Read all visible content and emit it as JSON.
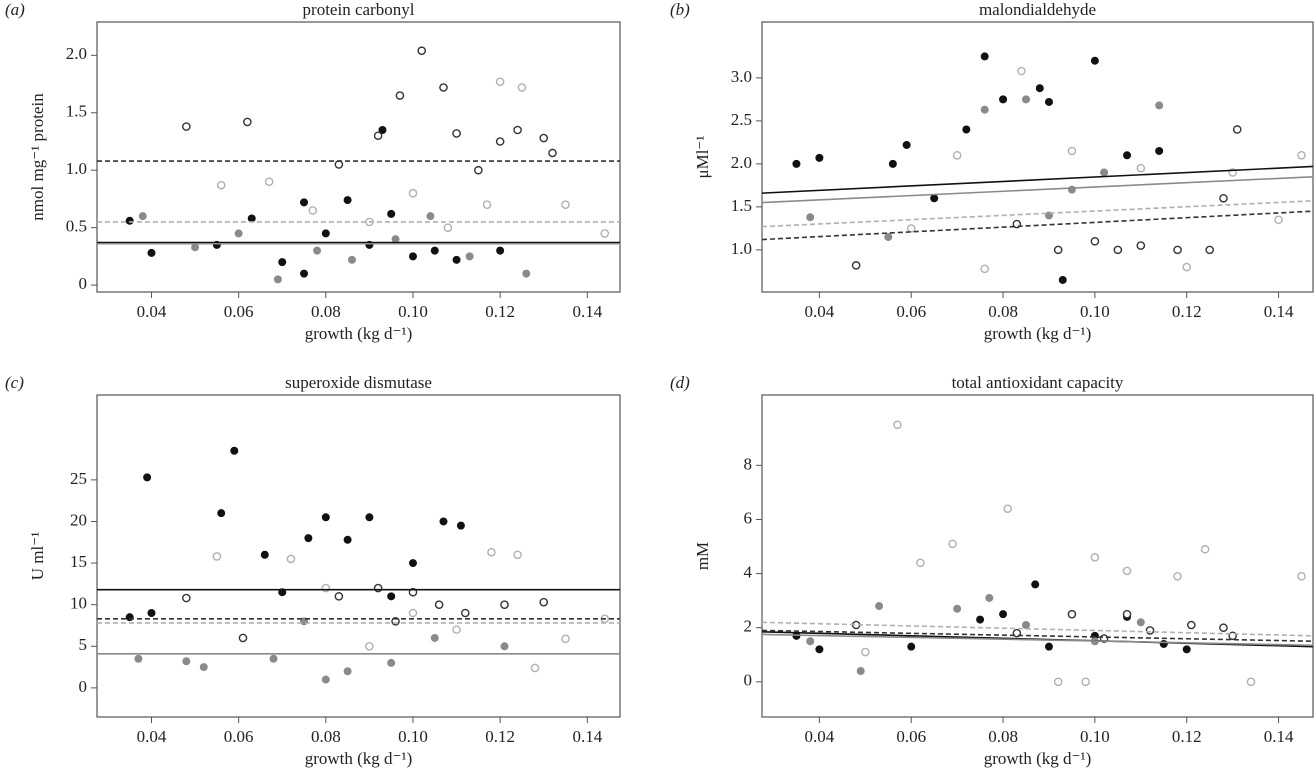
{
  "chart_data": [
    {
      "type": "scatter",
      "panel": "(a)",
      "title": "protein carbonyl",
      "x_label": "growth (kg d⁻¹)",
      "y_label": "nmol mg⁻¹ protein",
      "xlim": [
        0.0275,
        0.1475
      ],
      "xticks": [
        0.04,
        0.06,
        0.08,
        {
          "value": 0.1,
          "label": "0.10"
        },
        0.12,
        0.14
      ],
      "ylim": [
        -0.06,
        2.29
      ],
      "yticks": [
        0,
        0.5,
        {
          "value": 1,
          "label": "1.0"
        },
        1.5,
        {
          "value": 2,
          "label": "2.0"
        }
      ],
      "series": [
        {
          "color": "#111111",
          "marker": "filled",
          "dash": false,
          "x": [
            0.035,
            0.04,
            0.055,
            0.063,
            0.07,
            0.075,
            0.08,
            0.085,
            0.09,
            0.095,
            0.1,
            0.105,
            0.11,
            0.12,
            0.075,
            0.093
          ],
          "values": [
            0.56,
            0.28,
            0.35,
            0.58,
            0.2,
            0.1,
            0.45,
            0.74,
            0.35,
            0.62,
            0.25,
            0.3,
            0.22,
            0.3,
            0.72,
            1.35
          ],
          "trend": [
            0.37,
            0.37
          ]
        },
        {
          "color": "#8a8a8a",
          "marker": "filled",
          "dash": false,
          "x": [
            0.038,
            0.05,
            0.06,
            0.069,
            0.078,
            0.086,
            0.096,
            0.104,
            0.113,
            0.126
          ],
          "values": [
            0.6,
            0.33,
            0.45,
            0.05,
            0.3,
            0.22,
            0.4,
            0.6,
            0.25,
            0.1
          ],
          "trend": [
            0.36,
            0.36
          ]
        },
        {
          "color": "#333333",
          "marker": "open",
          "dash": true,
          "x": [
            0.048,
            0.062,
            0.083,
            0.092,
            0.097,
            0.102,
            0.107,
            0.11,
            0.115,
            0.12,
            0.124,
            0.13,
            0.132
          ],
          "values": [
            1.38,
            1.42,
            1.05,
            1.3,
            1.65,
            2.04,
            1.72,
            1.32,
            1.0,
            1.25,
            1.35,
            1.28,
            1.15
          ],
          "trend": [
            1.08,
            1.08
          ]
        },
        {
          "color": "#b0b0b0",
          "marker": "open",
          "dash": true,
          "x": [
            0.056,
            0.067,
            0.077,
            0.09,
            0.1,
            0.108,
            0.117,
            0.12,
            0.125,
            0.135,
            0.144
          ],
          "values": [
            0.87,
            0.9,
            0.65,
            0.55,
            0.8,
            0.5,
            0.7,
            1.77,
            1.72,
            0.7,
            0.45
          ],
          "trend": [
            0.55,
            0.55
          ]
        }
      ]
    },
    {
      "type": "scatter",
      "panel": "(b)",
      "title": "malondialdehyde",
      "x_label": "growth (kg d⁻¹)",
      "y_label": "μMl⁻¹",
      "xlim": [
        0.0275,
        0.1475
      ],
      "xticks": [
        0.04,
        0.06,
        0.08,
        {
          "value": 0.1,
          "label": "0.10"
        },
        0.12,
        0.14
      ],
      "ylim": [
        0.51,
        3.65
      ],
      "yticks": [
        {
          "value": 1,
          "label": "1.0"
        },
        1.5,
        {
          "value": 2,
          "label": "2.0"
        },
        2.5,
        {
          "value": 3,
          "label": "3.0"
        }
      ],
      "series": [
        {
          "color": "#111111",
          "marker": "filled",
          "dash": false,
          "x": [
            0.035,
            0.04,
            0.056,
            0.059,
            0.072,
            0.076,
            0.08,
            0.088,
            0.09,
            0.1,
            0.107,
            0.114,
            0.093,
            0.065
          ],
          "values": [
            2.0,
            2.07,
            2.0,
            2.22,
            2.4,
            3.25,
            2.75,
            2.88,
            2.72,
            3.2,
            2.1,
            2.15,
            0.65,
            1.6
          ],
          "trend": [
            1.66,
            1.97
          ]
        },
        {
          "color": "#8a8a8a",
          "marker": "filled",
          "dash": false,
          "x": [
            0.038,
            0.055,
            0.076,
            0.085,
            0.095,
            0.102,
            0.114,
            0.09
          ],
          "values": [
            1.38,
            1.15,
            2.63,
            2.75,
            1.7,
            1.9,
            2.68,
            1.4
          ],
          "trend": [
            1.55,
            1.85
          ]
        },
        {
          "color": "#333333",
          "marker": "open",
          "dash": true,
          "x": [
            0.048,
            0.083,
            0.092,
            0.1,
            0.105,
            0.11,
            0.118,
            0.125,
            0.131,
            0.128
          ],
          "values": [
            0.82,
            1.3,
            1.0,
            1.1,
            1.0,
            1.05,
            1.0,
            1.0,
            2.4,
            1.6
          ],
          "trend": [
            1.12,
            1.45
          ]
        },
        {
          "color": "#b0b0b0",
          "marker": "open",
          "dash": true,
          "x": [
            0.06,
            0.07,
            0.076,
            0.084,
            0.095,
            0.11,
            0.12,
            0.13,
            0.14,
            0.145
          ],
          "values": [
            1.25,
            2.1,
            0.78,
            3.08,
            2.15,
            1.95,
            0.8,
            1.9,
            1.35,
            2.1
          ],
          "trend": [
            1.27,
            1.57
          ]
        }
      ]
    },
    {
      "type": "scatter",
      "panel": "(c)",
      "title": "superoxide dismutase",
      "x_label": "growth (kg d⁻¹)",
      "y_label": "U ml⁻¹",
      "xlim": [
        0.0275,
        0.1475
      ],
      "xticks": [
        0.04,
        0.06,
        0.08,
        {
          "value": 0.1,
          "label": "0.10"
        },
        0.12,
        0.14
      ],
      "ylim": [
        -3.5,
        35.2
      ],
      "yticks": [
        0,
        5,
        10,
        15,
        20,
        25
      ],
      "series": [
        {
          "color": "#111111",
          "marker": "filled",
          "dash": false,
          "x": [
            0.035,
            0.039,
            0.04,
            0.056,
            0.059,
            0.066,
            0.076,
            0.08,
            0.085,
            0.09,
            0.1,
            0.107,
            0.111,
            0.07,
            0.095
          ],
          "values": [
            8.5,
            25.3,
            9,
            21,
            28.5,
            16,
            18,
            20.5,
            17.8,
            20.5,
            15,
            20,
            19.5,
            11.5,
            11
          ],
          "trend": [
            11.8,
            11.8
          ]
        },
        {
          "color": "#8a8a8a",
          "marker": "filled",
          "dash": false,
          "x": [
            0.037,
            0.048,
            0.052,
            0.068,
            0.075,
            0.08,
            0.085,
            0.095,
            0.105,
            0.121
          ],
          "values": [
            3.5,
            3.2,
            2.5,
            3.5,
            8,
            1,
            2,
            3,
            6,
            5
          ],
          "trend": [
            4.1,
            4.1
          ]
        },
        {
          "color": "#333333",
          "marker": "open",
          "dash": true,
          "x": [
            0.048,
            0.061,
            0.083,
            0.092,
            0.096,
            0.1,
            0.106,
            0.112,
            0.121,
            0.13
          ],
          "values": [
            10.8,
            6,
            11,
            12,
            8,
            11.5,
            10,
            9,
            10,
            10.3
          ],
          "trend": [
            8.3,
            8.3
          ]
        },
        {
          "color": "#b0b0b0",
          "marker": "open",
          "dash": true,
          "x": [
            0.055,
            0.072,
            0.08,
            0.09,
            0.1,
            0.11,
            0.118,
            0.124,
            0.128,
            0.135,
            0.144
          ],
          "values": [
            15.8,
            15.5,
            12,
            5,
            9,
            7,
            16.3,
            16,
            2.4,
            5.9,
            8.3
          ],
          "trend": [
            7.8,
            7.8
          ]
        }
      ]
    },
    {
      "type": "scatter",
      "panel": "(d)",
      "title": "total antioxidant capacity",
      "x_label": "growth (kg d⁻¹)",
      "y_label": "mM",
      "xlim": [
        0.0275,
        0.1475
      ],
      "xticks": [
        0.04,
        0.06,
        0.08,
        {
          "value": 0.1,
          "label": "0.10"
        },
        0.12,
        0.14
      ],
      "ylim": [
        -1.3,
        10.6
      ],
      "yticks": [
        0,
        2,
        4,
        6,
        8
      ],
      "series": [
        {
          "color": "#111111",
          "marker": "filled",
          "dash": false,
          "x": [
            0.035,
            0.04,
            0.06,
            0.075,
            0.08,
            0.087,
            0.09,
            0.1,
            0.107,
            0.115,
            0.12
          ],
          "values": [
            1.7,
            1.2,
            1.3,
            2.3,
            2.5,
            3.6,
            1.3,
            1.7,
            2.4,
            1.4,
            1.2
          ],
          "trend": [
            1.85,
            1.3
          ]
        },
        {
          "color": "#8a8a8a",
          "marker": "filled",
          "dash": false,
          "x": [
            0.038,
            0.049,
            0.053,
            0.07,
            0.077,
            0.085,
            0.1,
            0.11
          ],
          "values": [
            1.5,
            0.4,
            2.8,
            2.7,
            3.1,
            2.1,
            1.5,
            2.2
          ],
          "trend": [
            1.75,
            1.35
          ]
        },
        {
          "color": "#333333",
          "marker": "open",
          "dash": true,
          "x": [
            0.048,
            0.083,
            0.095,
            0.102,
            0.107,
            0.112,
            0.121,
            0.128,
            0.13
          ],
          "values": [
            2.1,
            1.8,
            2.5,
            1.6,
            2.5,
            1.9,
            2.1,
            2.0,
            1.7
          ],
          "trend": [
            1.9,
            1.5
          ]
        },
        {
          "color": "#b0b0b0",
          "marker": "open",
          "dash": true,
          "x": [
            0.057,
            0.062,
            0.069,
            0.081,
            0.092,
            0.1,
            0.107,
            0.118,
            0.124,
            0.134,
            0.145,
            0.05,
            0.098
          ],
          "values": [
            9.5,
            4.4,
            5.1,
            6.4,
            0,
            4.6,
            4.1,
            3.9,
            4.9,
            0,
            3.9,
            1.1,
            0
          ],
          "trend": [
            2.2,
            1.7
          ]
        }
      ]
    }
  ]
}
